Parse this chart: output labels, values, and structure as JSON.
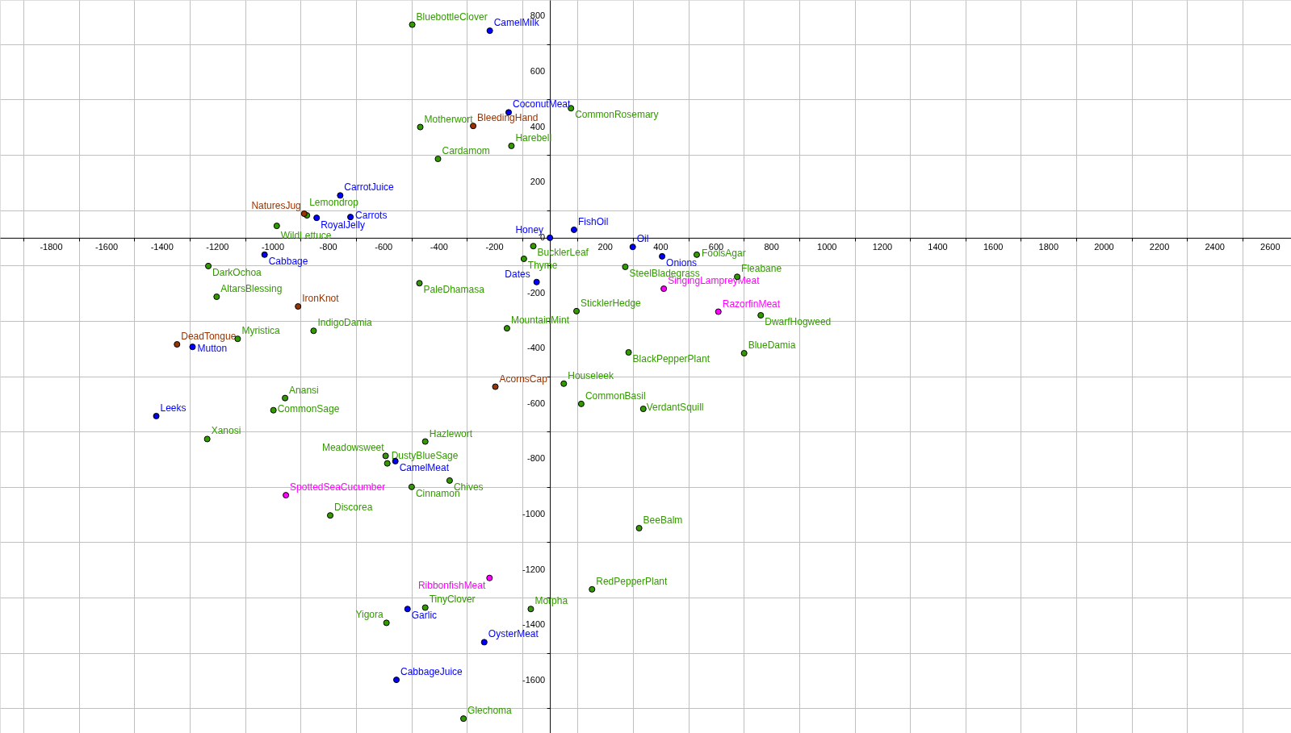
{
  "chart_data": {
    "type": "scatter",
    "xlim": [
      -1985,
      2675
    ],
    "ylim": [
      -1789,
      859
    ],
    "xticks": [
      {
        "value": -1900,
        "label": null
      },
      -1800,
      {
        "value": -1700,
        "label": null
      },
      -1600,
      {
        "value": -1500,
        "label": null
      },
      -1400,
      {
        "value": -1300,
        "label": null
      },
      -1200,
      {
        "value": -1100,
        "label": null
      },
      -1000,
      {
        "value": -900,
        "label": null
      },
      -800,
      {
        "value": -700,
        "label": null
      },
      -600,
      {
        "value": -500,
        "label": null
      },
      -400,
      {
        "value": -300,
        "label": null
      },
      -200,
      {
        "value": -100,
        "label": null
      },
      {
        "value": 0,
        "label": null
      },
      {
        "value": 100,
        "label": null
      },
      200,
      {
        "value": 300,
        "label": null
      },
      400,
      {
        "value": 500,
        "label": null
      },
      600,
      {
        "value": 700,
        "label": null
      },
      800,
      {
        "value": 900,
        "label": null
      },
      1000,
      {
        "value": 1100,
        "label": null
      },
      1200,
      {
        "value": 1300,
        "label": null
      },
      1400,
      {
        "value": 1500,
        "label": null
      },
      1600,
      {
        "value": 1700,
        "label": null
      },
      1800,
      {
        "value": 1900,
        "label": null
      },
      2000,
      {
        "value": 2100,
        "label": null
      },
      2200,
      {
        "value": 2300,
        "label": null
      },
      2400,
      {
        "value": 2500,
        "label": null
      },
      2600
    ],
    "yticks": [
      {
        "value": -1700,
        "label": null
      },
      -1600,
      {
        "value": -1500,
        "label": null
      },
      -1400,
      {
        "value": -1300,
        "label": null
      },
      -1200,
      {
        "value": -1100,
        "label": null
      },
      -1000,
      {
        "value": -900,
        "label": null
      },
      -800,
      {
        "value": -700,
        "label": null
      },
      -600,
      {
        "value": -500,
        "label": null
      },
      -400,
      {
        "value": -300,
        "label": null
      },
      -200,
      {
        "value": -100,
        "label": null
      },
      0,
      {
        "value": 100,
        "label": null
      },
      200,
      {
        "value": 300,
        "label": null
      },
      400,
      {
        "value": 500,
        "label": null
      },
      600,
      {
        "value": 700,
        "label": null
      },
      800
    ],
    "grid": true,
    "marker": "circle",
    "legend": false,
    "series": [
      {
        "color": "#339900",
        "x": [
          -497,
          -468,
          -877,
          -986,
          -1233,
          -1203,
          -853,
          -1127,
          -471,
          76,
          -139,
          -404,
          -60,
          -94,
          530,
          272,
          676,
          96,
          761,
          -155,
          284,
          701,
          -956,
          -998,
          -1237,
          -450,
          -593,
          -587,
          -499,
          -793,
          -450,
          -590,
          50,
          113,
          337,
          -362,
          322,
          152,
          -69,
          -312
        ],
        "values": [
          770,
          400,
          81,
          43,
          -102,
          -213,
          -336,
          -365,
          -164,
          468,
          332,
          285,
          -30,
          -76,
          -61,
          -105,
          -141,
          -265,
          -280,
          -327,
          -414,
          -417,
          -579,
          -623,
          -727,
          -736,
          -788,
          -815,
          -900,
          -1003,
          -1336,
          -1391,
          -527,
          -600,
          -618,
          -877,
          -1049,
          -1270,
          -1341,
          -1737
        ]
      },
      {
        "color": "#0000ff",
        "x": [
          -757,
          -842,
          -720,
          -1030,
          -1290,
          -217,
          -149,
          0,
          87,
          299,
          405,
          -48,
          -1421,
          -558,
          -514,
          -554,
          -237
        ],
        "values": [
          153,
          72,
          75,
          -61,
          -394,
          748,
          453,
          0,
          29,
          -33,
          -67,
          -160,
          -644,
          -807,
          -1341,
          -1597,
          -1461
        ]
      },
      {
        "color": "#993300",
        "x": [
          -887,
          -909,
          -1346,
          -277,
          -197
        ],
        "values": [
          87,
          -248,
          -385,
          404,
          -538
        ]
      },
      {
        "color": "#ff00ff",
        "x": [
          411,
          608,
          -953,
          -218
        ],
        "values": [
          -184,
          -267,
          -930,
          -1229
        ]
      }
    ],
    "annotations": [
      {
        "text": "BluebottleClover",
        "x": -497,
        "y": 770
      },
      {
        "text": "Motherwort",
        "x": -468,
        "y": 400
      },
      {
        "text": "Lemondrop",
        "x": -877,
        "y": 81
      },
      {
        "text": "WildLettuce",
        "x": -986,
        "y": 43
      },
      {
        "text": "DarkOchoa",
        "x": -1233,
        "y": -102
      },
      {
        "text": "AltarsBlessing",
        "x": -1203,
        "y": -213
      },
      {
        "text": "IndigoDamia",
        "x": -853,
        "y": -336
      },
      {
        "text": "Myristica",
        "x": -1127,
        "y": -365
      },
      {
        "text": "PaleDhamasa",
        "x": -471,
        "y": -164
      },
      {
        "text": "CommonRosemary",
        "x": 76,
        "y": 468
      },
      {
        "text": "Harebell",
        "x": -139,
        "y": 332
      },
      {
        "text": "Cardamom",
        "x": -404,
        "y": 285
      },
      {
        "text": "BucklerLeaf",
        "x": -60,
        "y": -30
      },
      {
        "text": "Thyme",
        "x": -94,
        "y": -76
      },
      {
        "text": "FoolsAgar",
        "x": 530,
        "y": -61
      },
      {
        "text": "SteelBladegrass",
        "x": 272,
        "y": -105
      },
      {
        "text": "Fleabane",
        "x": 676,
        "y": -141
      },
      {
        "text": "SticklerHedge",
        "x": 96,
        "y": -265
      },
      {
        "text": "DwarfHogweed",
        "x": 761,
        "y": -280
      },
      {
        "text": "MountainMint",
        "x": -155,
        "y": -327
      },
      {
        "text": "BlackPepperPlant",
        "x": 284,
        "y": -414
      },
      {
        "text": "BlueDamia",
        "x": 701,
        "y": -417
      },
      {
        "text": "Anansi",
        "x": -956,
        "y": -579
      },
      {
        "text": "CommonSage",
        "x": -998,
        "y": -623
      },
      {
        "text": "Xanosi",
        "x": -1237,
        "y": -727
      },
      {
        "text": "Hazlewort",
        "x": -450,
        "y": -736
      },
      {
        "text": "Meadowsweet",
        "x": -593,
        "y": -788
      },
      {
        "text": "DustyBlueSage",
        "x": -587,
        "y": -815
      },
      {
        "text": "Cinnamon",
        "x": -499,
        "y": -900
      },
      {
        "text": "Discorea",
        "x": -793,
        "y": -1003
      },
      {
        "text": "TinyClover",
        "x": -450,
        "y": -1336
      },
      {
        "text": "Yigora",
        "x": -590,
        "y": -1391
      },
      {
        "text": "Houseleek",
        "x": 50,
        "y": -527
      },
      {
        "text": "CommonBasil",
        "x": 113,
        "y": -600
      },
      {
        "text": "VerdantSquill",
        "x": 337,
        "y": -618
      },
      {
        "text": "Chives",
        "x": -362,
        "y": -877
      },
      {
        "text": "BeeBalm",
        "x": 322,
        "y": -1049
      },
      {
        "text": "RedPepperPlant",
        "x": 152,
        "y": -1270
      },
      {
        "text": "Morpha",
        "x": -69,
        "y": -1341
      },
      {
        "text": "Glechoma",
        "x": -312,
        "y": -1737
      },
      {
        "text": "CarrotJuice",
        "x": -757,
        "y": 153
      },
      {
        "text": "RoyalJelly",
        "x": -842,
        "y": 72
      },
      {
        "text": "Carrots",
        "x": -720,
        "y": 75
      },
      {
        "text": "Cabbage",
        "x": -1030,
        "y": -61
      },
      {
        "text": "Mutton",
        "x": -1290,
        "y": -394
      },
      {
        "text": "CamelMilk",
        "x": -217,
        "y": 748
      },
      {
        "text": "CoconutMeat",
        "x": -149,
        "y": 453
      },
      {
        "text": "Honey",
        "x": 0,
        "y": 0
      },
      {
        "text": "FishOil",
        "x": 87,
        "y": 29
      },
      {
        "text": "Oil",
        "x": 299,
        "y": -33
      },
      {
        "text": "Onions",
        "x": 405,
        "y": -67
      },
      {
        "text": "Dates",
        "x": -48,
        "y": -160
      },
      {
        "text": "Leeks",
        "x": -1421,
        "y": -644
      },
      {
        "text": "CamelMeat",
        "x": -558,
        "y": -807
      },
      {
        "text": "Garlic",
        "x": -514,
        "y": -1341
      },
      {
        "text": "CabbageJuice",
        "x": -554,
        "y": -1597
      },
      {
        "text": "OysterMeat",
        "x": -237,
        "y": -1461
      },
      {
        "text": "NaturesJug",
        "x": -887,
        "y": 87
      },
      {
        "text": "IronKnot",
        "x": -909,
        "y": -248
      },
      {
        "text": "DeadTongue",
        "x": -1346,
        "y": -385
      },
      {
        "text": "BleedingHand",
        "x": -277,
        "y": 404
      },
      {
        "text": "AcornsCap",
        "x": -197,
        "y": -538
      },
      {
        "text": "SingingLampreyMeat",
        "x": 411,
        "y": -184
      },
      {
        "text": "RazorfinMeat",
        "x": 608,
        "y": -267
      },
      {
        "text": "SpottedSeaCucumber",
        "x": -953,
        "y": -930
      },
      {
        "text": "RibbonfishMeat",
        "x": -218,
        "y": -1229
      }
    ]
  }
}
